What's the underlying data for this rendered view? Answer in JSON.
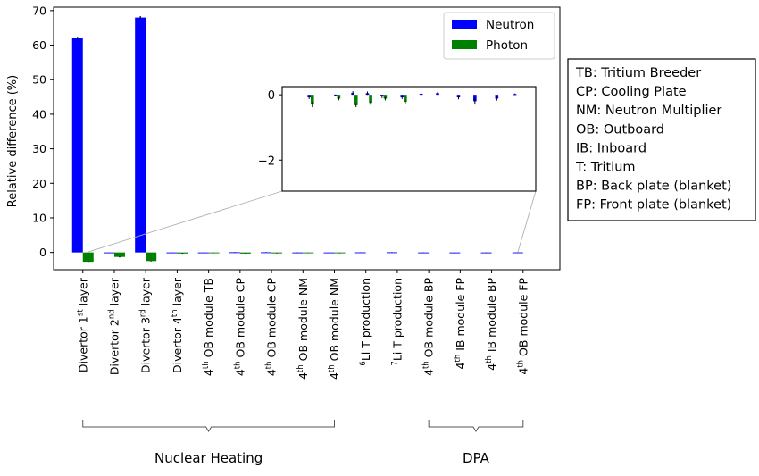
{
  "chart_data": {
    "type": "bar",
    "ylabel": "Relative difference (%)",
    "ylim": [
      -5,
      71
    ],
    "yticks": [
      "0",
      "10",
      "20",
      "30",
      "40",
      "50",
      "60",
      "70"
    ],
    "categories": [
      {
        "pre": "Divertor 1",
        "sup": "st",
        "post": " layer"
      },
      {
        "pre": "Divertor 2",
        "sup": "nd",
        "post": " layer"
      },
      {
        "pre": "Divertor 3",
        "sup": "rd",
        "post": " layer"
      },
      {
        "pre": "Divertor 4",
        "sup": "th",
        "post": " layer"
      },
      {
        "pre": "4",
        "sup": "th",
        "post": " OB module TB"
      },
      {
        "pre": "4",
        "sup": "th",
        "post": " OB module CP"
      },
      {
        "pre": "4",
        "sup": "th",
        "post": " OB module CP"
      },
      {
        "pre": "4",
        "sup": "th",
        "post": " OB module NM"
      },
      {
        "pre": "4",
        "sup": "th",
        "post": " OB module NM"
      },
      {
        "pre": "",
        "sup": "6",
        "post": "Li T production"
      },
      {
        "pre": "",
        "sup": "7",
        "post": "Li T production"
      },
      {
        "pre": "4",
        "sup": "th",
        "post": " OB module BP"
      },
      {
        "pre": "4",
        "sup": "th",
        "post": " IB module FP"
      },
      {
        "pre": "4",
        "sup": "th",
        "post": " IB module BP"
      },
      {
        "pre": "4",
        "sup": "th",
        "post": " OB module FP"
      }
    ],
    "series": [
      {
        "name": "Neutron",
        "color": "#0000ff",
        "values": [
          62.0,
          -0.1,
          68.0,
          -0.08,
          -0.02,
          0.06,
          0.05,
          -0.05,
          -0.08,
          0.03,
          0.05,
          -0.08,
          -0.2,
          -0.12,
          0.02
        ],
        "errors": [
          0.4,
          0.05,
          0.4,
          0.05,
          0.03,
          0.05,
          0.05,
          0.05,
          0.05,
          0.03,
          0.03,
          0.06,
          0.1,
          0.06,
          0.02
        ]
      },
      {
        "name": "Photon",
        "color": "#008000",
        "values": [
          -2.7,
          -1.3,
          -2.5,
          -0.3,
          -0.12,
          -0.32,
          -0.25,
          -0.12,
          -0.22,
          null,
          null,
          null,
          null,
          null,
          null
        ],
        "errors": [
          0.1,
          0.15,
          0.1,
          0.08,
          0.05,
          0.06,
          0.06,
          0.05,
          0.05,
          null,
          null,
          null,
          null,
          null,
          null
        ]
      }
    ],
    "legend": {
      "position": "top-right",
      "entries": [
        "Neutron",
        "Photon"
      ]
    },
    "inset": {
      "ylim": [
        -2.95,
        0.25
      ],
      "yticks": [
        "0",
        "−2"
      ],
      "category_range": [
        3,
        14
      ]
    },
    "groups": [
      {
        "label": "Nuclear Heating",
        "from": 0,
        "to": 8
      },
      {
        "label": "DPA",
        "from": 11,
        "to": 14
      }
    ],
    "annotation": {
      "lines": [
        "TB: Tritium Breeder",
        "CP: Cooling Plate",
        "NM: Neutron Multiplier",
        "OB: Outboard",
        "IB: Inboard",
        "T: Tritium",
        "BP: Back plate (blanket)",
        "FP: Front plate (blanket)"
      ]
    }
  }
}
